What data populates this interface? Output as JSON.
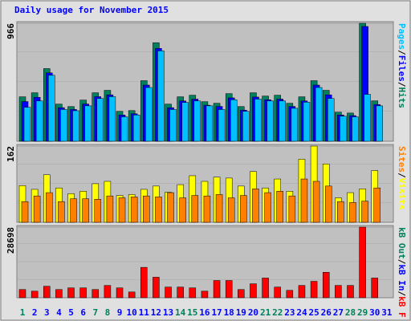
{
  "chart_data": [
    {
      "type": "bar",
      "title": "Daily usage for November 2015",
      "legend_separator": "/",
      "ylim": [
        0,
        966
      ],
      "yticks": [
        966
      ],
      "series": [
        {
          "name": "Hits",
          "color": "#00805c",
          "values": [
            364,
            397,
            595,
            304,
            284,
            337,
            397,
            417,
            245,
            251,
            496,
            807,
            304,
            364,
            377,
            324,
            311,
            390,
            284,
            397,
            370,
            377,
            311,
            364,
            496,
            417,
            238,
            231,
            966,
            331,
            0
          ]
        },
        {
          "name": "Files",
          "color": "#0000ff",
          "values": [
            325,
            360,
            560,
            275,
            260,
            305,
            365,
            380,
            215,
            225,
            460,
            760,
            275,
            330,
            345,
            295,
            285,
            355,
            255,
            362,
            340,
            345,
            285,
            330,
            460,
            380,
            215,
            210,
            940,
            300,
            0
          ]
        },
        {
          "name": "Pages",
          "color": "#00c0ff",
          "values": [
            278,
            330,
            540,
            260,
            250,
            290,
            350,
            365,
            200,
            215,
            440,
            740,
            260,
            318,
            330,
            290,
            260,
            340,
            245,
            345,
            330,
            330,
            270,
            320,
            440,
            350,
            205,
            200,
            384,
            290,
            0
          ]
        }
      ]
    },
    {
      "type": "bar",
      "ylim": [
        0,
        162
      ],
      "yticks": [
        162
      ],
      "series": [
        {
          "name": "Visits",
          "color": "#ffff00",
          "values": [
            78,
            70,
            101,
            73,
            61,
            66,
            82,
            87,
            57,
            59,
            70,
            77,
            64,
            80,
            99,
            87,
            96,
            94,
            77,
            108,
            73,
            92,
            66,
            134,
            162,
            124,
            52,
            63,
            71,
            110,
            0
          ]
        },
        {
          "name": "Sites",
          "color": "#ff8000",
          "values": [
            44,
            56,
            63,
            44,
            50,
            50,
            49,
            56,
            52,
            54,
            56,
            54,
            63,
            52,
            57,
            56,
            59,
            52,
            57,
            71,
            63,
            66,
            56,
            92,
            87,
            77,
            44,
            42,
            45,
            73,
            0
          ]
        }
      ]
    },
    {
      "type": "bar",
      "ylim": [
        0,
        28698
      ],
      "yticks": [
        28698
      ],
      "categories": [
        "1",
        "2",
        "3",
        "4",
        "5",
        "6",
        "7",
        "8",
        "9",
        "10",
        "11",
        "12",
        "13",
        "14",
        "15",
        "16",
        "17",
        "18",
        "19",
        "20",
        "21",
        "22",
        "23",
        "24",
        "25",
        "26",
        "27",
        "28",
        "29",
        "30",
        "31"
      ],
      "weekend": [
        true,
        false,
        false,
        false,
        false,
        false,
        true,
        true,
        false,
        false,
        false,
        false,
        false,
        true,
        true,
        false,
        false,
        false,
        false,
        false,
        true,
        true,
        false,
        false,
        false,
        false,
        false,
        true,
        true,
        false,
        false
      ],
      "weekend_color": "#00805c",
      "weekday_color": "#0000ff",
      "series": [
        {
          "name": "kB F",
          "color": "#ff0000",
          "values": [
            3337,
            2670,
            4672,
            3337,
            4004,
            4004,
            3337,
            5006,
            4004,
            2336,
            12347,
            8343,
            4338,
            4338,
            4004,
            2670,
            7008,
            7008,
            3337,
            5673,
            8009,
            4338,
            3003,
            5006,
            6674,
            10345,
            5006,
            5006,
            28698,
            8009,
            0
          ]
        }
      ],
      "extra_legend": [
        {
          "name": "kB In",
          "color": "#0000ff"
        },
        {
          "name": "kB Out",
          "color": "#00805c"
        }
      ]
    }
  ]
}
